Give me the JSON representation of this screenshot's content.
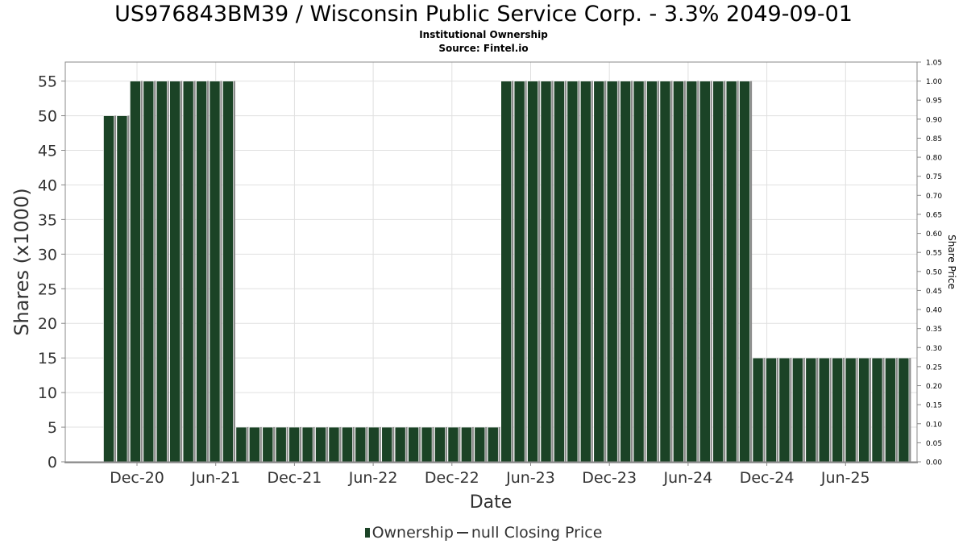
{
  "header": {
    "title": "US976843BM39 / Wisconsin Public Service Corp. - 3.3% 2049-09-01",
    "subtitle": "Institutional Ownership",
    "source": "Source: Fintel.io"
  },
  "legend": {
    "ownership": "Ownership",
    "price": "null Closing Price"
  },
  "colors": {
    "bar": "#1b4326",
    "bar_shadow": "#8a8a8a",
    "grid": "#e0e0e0",
    "axis": "#888888"
  },
  "chart_data": {
    "type": "bar",
    "xlabel": "Date",
    "ylabel": "Shares (x1000)",
    "y2label": "Share Price",
    "ylim": [
      0,
      57.75
    ],
    "y2lim": [
      0,
      1.05
    ],
    "yticks": [
      0,
      5,
      10,
      15,
      20,
      25,
      30,
      35,
      40,
      45,
      50,
      55
    ],
    "y2ticks": [
      "0.00",
      "0.05",
      "0.10",
      "0.15",
      "0.20",
      "0.25",
      "0.30",
      "0.35",
      "0.40",
      "0.45",
      "0.50",
      "0.55",
      "0.60",
      "0.65",
      "0.70",
      "0.75",
      "0.80",
      "0.85",
      "0.90",
      "0.95",
      "1.00",
      "1.05"
    ],
    "xticks": [
      "Dec-20",
      "Jun-21",
      "Dec-21",
      "Jun-22",
      "Dec-22",
      "Jun-23",
      "Dec-23",
      "Jun-24",
      "Dec-24",
      "Jun-25"
    ],
    "grid": true,
    "legend_position": "bottom",
    "series": [
      {
        "name": "Ownership",
        "values": [
          50,
          50,
          55,
          55,
          55,
          55,
          55,
          55,
          55,
          55,
          5,
          5,
          5,
          5,
          5,
          5,
          5,
          5,
          5,
          5,
          5,
          5,
          5,
          5,
          5,
          5,
          5,
          5,
          5,
          5,
          55,
          55,
          55,
          55,
          55,
          55,
          55,
          55,
          55,
          55,
          55,
          55,
          55,
          55,
          55,
          55,
          55,
          55,
          55,
          15,
          15,
          15,
          15,
          15,
          15,
          15,
          15,
          15,
          15,
          15,
          15
        ]
      }
    ]
  }
}
